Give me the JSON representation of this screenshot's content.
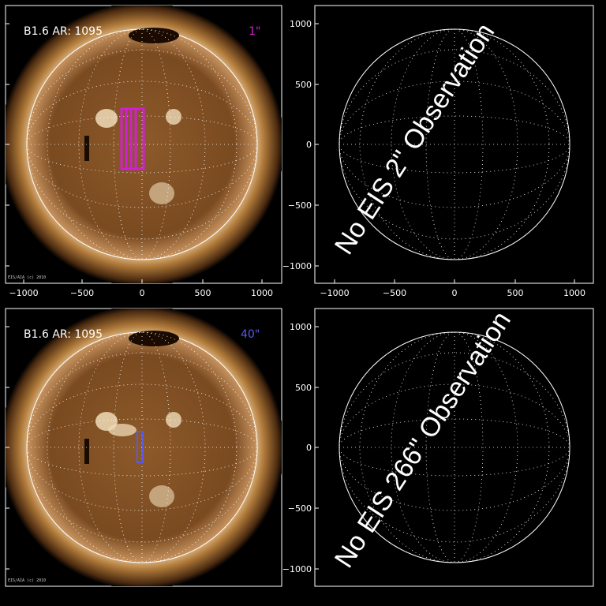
{
  "panels": [
    {
      "id": "top-left",
      "active_region": "B1.6 AR: 1095",
      "slit_label": "1\"",
      "slit_color": "#d020d0",
      "credit": "EIS/AIA (c) 2010"
    },
    {
      "id": "top-right",
      "message": "No EIS 2\" Observation"
    },
    {
      "id": "bottom-left",
      "active_region": "B1.6 AR: 1095",
      "slit_label": "40\"",
      "slit_color": "#5a5ae6",
      "credit": "EIS/AIA (c) 2010"
    },
    {
      "id": "bottom-right",
      "message": "No EIS 266\" Observation"
    }
  ],
  "axes": {
    "x_ticks": [
      "−1000",
      "−500",
      "0",
      "500",
      "1000"
    ],
    "y_ticks": [
      "1000",
      "500",
      "0",
      "−500",
      "−1000"
    ]
  },
  "colors": {
    "background": "#000000",
    "sun_disk": "#8a5a28",
    "corona": "#c89a5a",
    "grid": "#ffffff"
  }
}
